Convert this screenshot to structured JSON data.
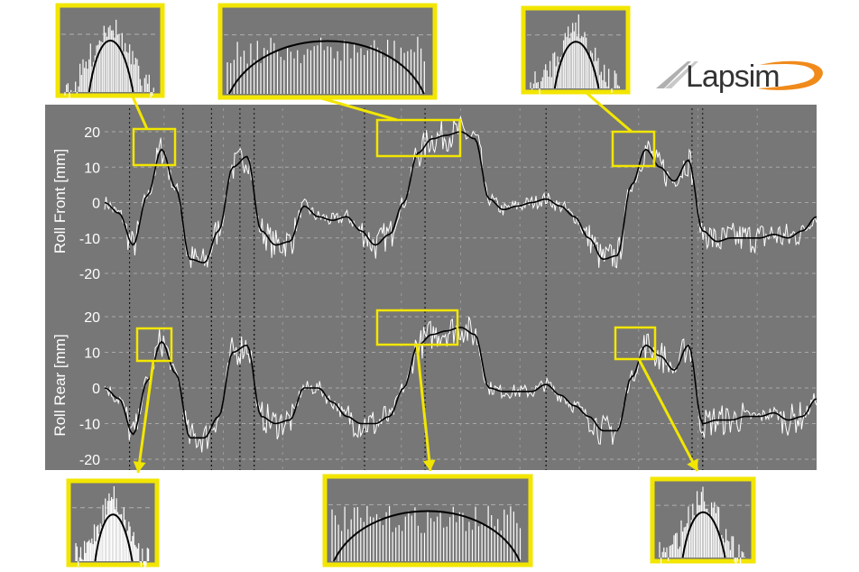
{
  "logo": {
    "text_main": "Lapsim",
    "name": "lapsim-logo"
  },
  "chart_data": [
    {
      "type": "line",
      "ylabel": "Roll Front [mm]",
      "ylim": [
        -24,
        28
      ],
      "yticks": [
        20,
        10,
        0,
        -10,
        -20
      ],
      "grid": true,
      "series": [
        {
          "color": "#000000",
          "style": "smooth",
          "x": [
            0,
            2,
            4,
            6,
            8,
            10,
            12,
            14,
            16,
            18,
            20,
            22,
            24,
            26,
            28,
            30,
            32,
            34,
            36,
            38,
            40,
            42,
            44,
            46,
            48,
            50,
            52,
            54,
            56,
            58,
            60,
            62,
            64,
            66,
            68,
            70,
            72,
            74,
            76,
            78,
            80,
            82,
            84,
            86,
            88,
            90,
            92,
            94,
            96,
            98,
            100
          ],
          "values": [
            0,
            -3,
            -12,
            2,
            15,
            4,
            -16,
            -17,
            -8,
            10,
            13,
            -8,
            -12,
            -11,
            -1,
            -4,
            -5,
            -4,
            -8,
            -12,
            -9,
            0,
            14,
            18,
            19,
            20,
            18,
            1,
            -2,
            -1,
            0,
            1,
            -1,
            -4,
            -10,
            -16,
            -15,
            5,
            15,
            10,
            6,
            12,
            -8,
            -11,
            -10,
            -10,
            -10,
            -9,
            -10,
            -8,
            -4
          ]
        }
      ],
      "vlines": [
        3.5,
        11,
        15,
        19,
        21,
        36.5,
        45,
        62,
        82.5,
        84
      ]
    },
    {
      "type": "line",
      "ylabel": "Roll Rear [mm]",
      "ylim": [
        -24,
        28
      ],
      "yticks": [
        20,
        10,
        0,
        -10,
        -20
      ],
      "grid": true,
      "series": [
        {
          "color": "#000000",
          "style": "smooth",
          "x": [
            0,
            2,
            4,
            6,
            8,
            10,
            12,
            14,
            16,
            18,
            20,
            22,
            24,
            26,
            28,
            30,
            32,
            34,
            36,
            38,
            40,
            42,
            44,
            46,
            48,
            50,
            52,
            54,
            56,
            58,
            60,
            62,
            64,
            66,
            68,
            70,
            72,
            74,
            76,
            78,
            80,
            82,
            84,
            86,
            88,
            90,
            92,
            94,
            96,
            98,
            100
          ],
          "values": [
            0,
            -3,
            -13,
            2,
            13,
            4,
            -14,
            -14,
            -8,
            10,
            12,
            -8,
            -10,
            -9,
            0,
            0,
            -4,
            -8,
            -10,
            -10,
            -8,
            0,
            12,
            15,
            16,
            17,
            15,
            0,
            -1,
            -1,
            -1,
            1,
            -2,
            -5,
            -8,
            -12,
            -12,
            3,
            12,
            9,
            5,
            12,
            -10,
            -9,
            -9,
            -8,
            -8,
            -7,
            -9,
            -8,
            -3
          ]
        }
      ],
      "vlines": [
        3.5,
        11,
        15,
        19,
        21,
        36.5,
        45,
        62,
        82.5,
        84
      ]
    }
  ]
}
